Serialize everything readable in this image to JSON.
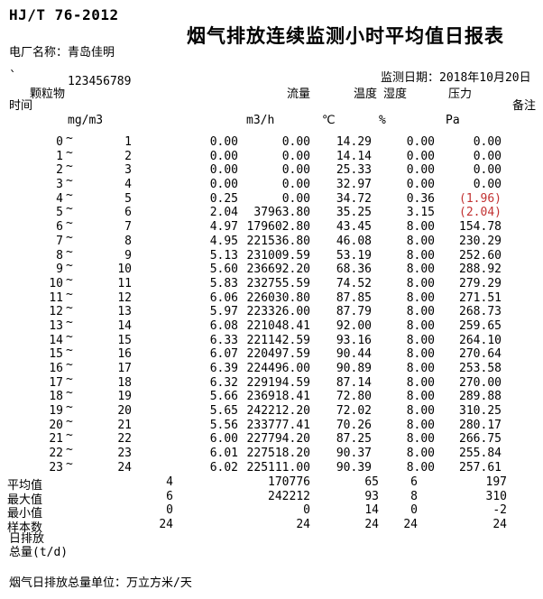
{
  "doc": {
    "standard": "HJ/T 76-2012",
    "title": "烟气排放连续监测小时平均值日报表",
    "plant_label": "电厂名称：青岛佳明",
    "tick": "`",
    "serial": "123456789",
    "date_label": "监测日期：2018年10月20日",
    "footer_note": "烟气日排放总量单位：万立方米/天"
  },
  "table": {
    "col_headers": {
      "time": "时间",
      "pm": "颗粒物",
      "flow": "流量",
      "temp": "温度",
      "humidity": "湿度",
      "pressure": "压力",
      "remark": "备注"
    },
    "units": {
      "pm": "mg/m3",
      "flow": "m3/h",
      "temp": "℃",
      "humidity": "%",
      "pressure": "Pa"
    },
    "tilde": "~",
    "rows": [
      {
        "from": "0",
        "to": "1",
        "pm": "0.00",
        "flow": "0.00",
        "temp": "14.29",
        "humidity": "0.00",
        "pressure": "0.00",
        "alarm": false
      },
      {
        "from": "1",
        "to": "2",
        "pm": "0.00",
        "flow": "0.00",
        "temp": "14.14",
        "humidity": "0.00",
        "pressure": "0.00",
        "alarm": false
      },
      {
        "from": "2",
        "to": "3",
        "pm": "0.00",
        "flow": "0.00",
        "temp": "25.33",
        "humidity": "0.00",
        "pressure": "0.00",
        "alarm": false
      },
      {
        "from": "3",
        "to": "4",
        "pm": "0.00",
        "flow": "0.00",
        "temp": "32.97",
        "humidity": "0.00",
        "pressure": "0.00",
        "alarm": false
      },
      {
        "from": "4",
        "to": "5",
        "pm": "0.25",
        "flow": "0.00",
        "temp": "34.72",
        "humidity": "0.36",
        "pressure": "(1.96)",
        "alarm": true
      },
      {
        "from": "5",
        "to": "6",
        "pm": "2.04",
        "flow": "37963.80",
        "temp": "35.25",
        "humidity": "3.15",
        "pressure": "(2.04)",
        "alarm": true
      },
      {
        "from": "6",
        "to": "7",
        "pm": "4.97",
        "flow": "179602.80",
        "temp": "43.45",
        "humidity": "8.00",
        "pressure": "154.78",
        "alarm": false
      },
      {
        "from": "7",
        "to": "8",
        "pm": "4.95",
        "flow": "221536.80",
        "temp": "46.08",
        "humidity": "8.00",
        "pressure": "230.29",
        "alarm": false
      },
      {
        "from": "8",
        "to": "9",
        "pm": "5.13",
        "flow": "231009.59",
        "temp": "53.19",
        "humidity": "8.00",
        "pressure": "252.60",
        "alarm": false
      },
      {
        "from": "9",
        "to": "10",
        "pm": "5.60",
        "flow": "236692.20",
        "temp": "68.36",
        "humidity": "8.00",
        "pressure": "288.92",
        "alarm": false
      },
      {
        "from": "10",
        "to": "11",
        "pm": "5.83",
        "flow": "232755.59",
        "temp": "74.52",
        "humidity": "8.00",
        "pressure": "279.29",
        "alarm": false
      },
      {
        "from": "11",
        "to": "12",
        "pm": "6.06",
        "flow": "226030.80",
        "temp": "87.85",
        "humidity": "8.00",
        "pressure": "271.51",
        "alarm": false
      },
      {
        "from": "12",
        "to": "13",
        "pm": "5.97",
        "flow": "223326.00",
        "temp": "87.79",
        "humidity": "8.00",
        "pressure": "268.73",
        "alarm": false
      },
      {
        "from": "13",
        "to": "14",
        "pm": "6.08",
        "flow": "221048.41",
        "temp": "92.00",
        "humidity": "8.00",
        "pressure": "259.65",
        "alarm": false
      },
      {
        "from": "14",
        "to": "15",
        "pm": "6.33",
        "flow": "221142.59",
        "temp": "93.16",
        "humidity": "8.00",
        "pressure": "264.10",
        "alarm": false
      },
      {
        "from": "15",
        "to": "16",
        "pm": "6.07",
        "flow": "220497.59",
        "temp": "90.44",
        "humidity": "8.00",
        "pressure": "270.64",
        "alarm": false
      },
      {
        "from": "16",
        "to": "17",
        "pm": "6.39",
        "flow": "224496.00",
        "temp": "90.89",
        "humidity": "8.00",
        "pressure": "253.58",
        "alarm": false
      },
      {
        "from": "17",
        "to": "18",
        "pm": "6.32",
        "flow": "229194.59",
        "temp": "87.14",
        "humidity": "8.00",
        "pressure": "270.00",
        "alarm": false
      },
      {
        "from": "18",
        "to": "19",
        "pm": "5.66",
        "flow": "236918.41",
        "temp": "72.80",
        "humidity": "8.00",
        "pressure": "289.88",
        "alarm": false
      },
      {
        "from": "19",
        "to": "20",
        "pm": "5.65",
        "flow": "242212.20",
        "temp": "72.02",
        "humidity": "8.00",
        "pressure": "310.25",
        "alarm": false
      },
      {
        "from": "20",
        "to": "21",
        "pm": "5.56",
        "flow": "233777.41",
        "temp": "70.26",
        "humidity": "8.00",
        "pressure": "280.17",
        "alarm": false
      },
      {
        "from": "21",
        "to": "22",
        "pm": "6.00",
        "flow": "227794.20",
        "temp": "87.25",
        "humidity": "8.00",
        "pressure": "266.75",
        "alarm": false
      },
      {
        "from": "22",
        "to": "23",
        "pm": "6.01",
        "flow": "227518.20",
        "temp": "90.37",
        "humidity": "8.00",
        "pressure": "255.84",
        "alarm": false
      },
      {
        "from": "23",
        "to": "24",
        "pm": "6.02",
        "flow": "225111.00",
        "temp": "90.39",
        "humidity": "8.00",
        "pressure": "257.61",
        "alarm": false
      }
    ],
    "summary": [
      {
        "label": "平均值",
        "pm": "4",
        "flow": "170776",
        "temp": "65",
        "humidity": "6",
        "pressure": "197"
      },
      {
        "label": "最大值",
        "pm": "6",
        "flow": "242212",
        "temp": "93",
        "humidity": "8",
        "pressure": "310"
      },
      {
        "label": "最小值",
        "pm": "0",
        "flow": "0",
        "temp": "14",
        "humidity": "0",
        "pressure": "-2"
      },
      {
        "label": "样本数",
        "pm": "24",
        "flow": "24",
        "temp": "24",
        "humidity": "24",
        "pressure": "24"
      }
    ],
    "daily_emission_label_line1": "日排放",
    "daily_emission_label_line2": "总量(t/d)"
  },
  "colors": {
    "text": "#000000",
    "background": "#ffffff",
    "alarm": "#c23232"
  }
}
